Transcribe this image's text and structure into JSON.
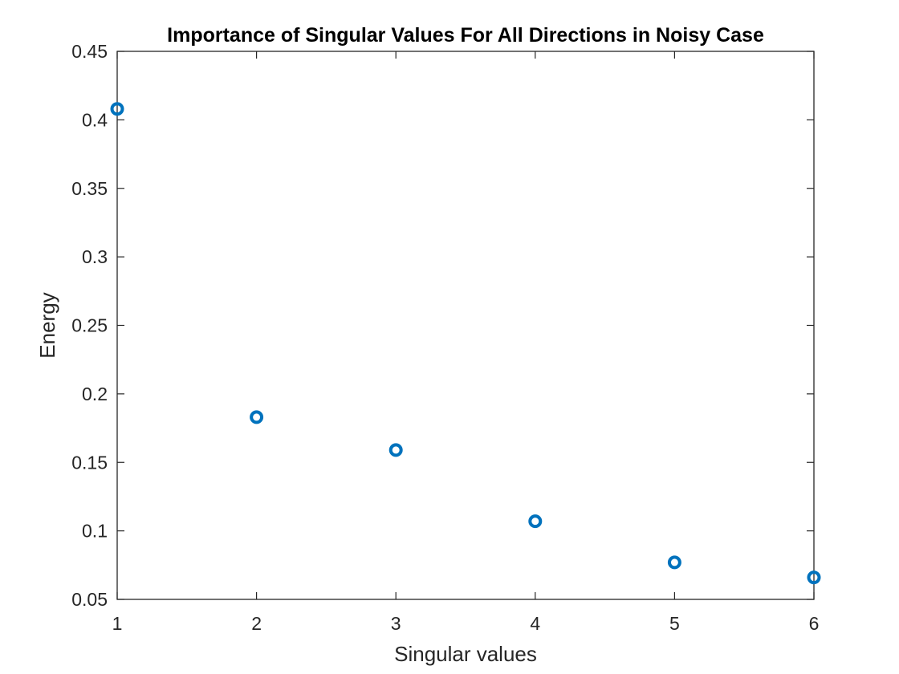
{
  "chart_data": {
    "type": "scatter",
    "title": "Importance of Singular Values For All Directions in Noisy Case",
    "xlabel": "Singular values",
    "ylabel": "Energy",
    "xlim": [
      1,
      6
    ],
    "ylim": [
      0.05,
      0.45
    ],
    "x_ticks": [
      "1",
      "2",
      "3",
      "4",
      "5",
      "6"
    ],
    "y_ticks": [
      "0.05",
      "0.1",
      "0.15",
      "0.2",
      "0.25",
      "0.3",
      "0.35",
      "0.4",
      "0.45"
    ],
    "grid": false,
    "marker": "circle-open",
    "marker_color": "#0072BD",
    "axis_color": "#262626",
    "series": [
      {
        "x": [
          1,
          2,
          3,
          4,
          5,
          6
        ],
        "y": [
          0.408,
          0.183,
          0.159,
          0.107,
          0.077,
          0.066
        ]
      }
    ]
  }
}
